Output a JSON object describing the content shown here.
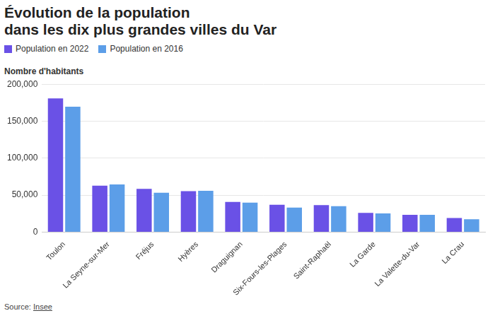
{
  "chart_data": {
    "type": "bar",
    "title": [
      "Évolution de la population",
      "dans les dix plus grandes villes du Var"
    ],
    "y_label": "Nombre d'habitants",
    "source": [
      "Source: ",
      "Insee"
    ],
    "categories": [
      "Toulon",
      "La Seyne-sur-Mer",
      "Fréjus",
      "Hyères",
      "Draguignan",
      "Six-Fours-les-Plages",
      "Saint-Raphaël",
      "La Garde",
      "La Valette-du-Var",
      "La Crau"
    ],
    "series": [
      {
        "name": "Population en 2022",
        "color": "#6a51e6",
        "values": [
          180800,
          62900,
          58600,
          55500,
          40800,
          37000,
          36500,
          26000,
          23300,
          19000
        ]
      },
      {
        "name": "Population en 2016",
        "color": "#5c9ee8",
        "values": [
          169600,
          64600,
          53200,
          55800,
          40000,
          33300,
          35000,
          25200,
          23500,
          17500
        ]
      }
    ],
    "ylim": [
      0,
      200000
    ],
    "yticks": [
      0,
      {
        "value": 50000,
        "label": "50,000"
      },
      {
        "value": 100000,
        "label": "100,000"
      },
      {
        "value": 150000,
        "label": "150,000"
      },
      {
        "value": 200000,
        "label": "200,000"
      }
    ],
    "grid": true,
    "legend": "top-left"
  }
}
